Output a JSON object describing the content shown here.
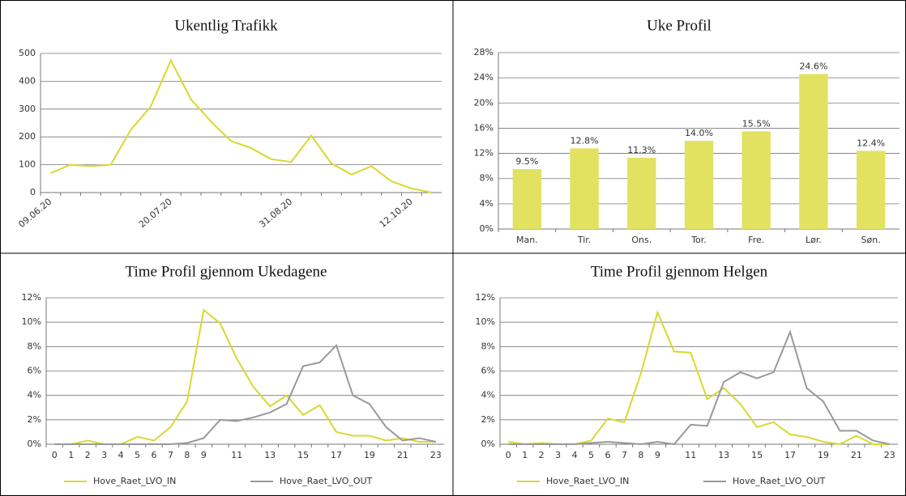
{
  "chart_data": [
    {
      "type": "line",
      "title": "Ukentlig Trafikk",
      "categories": [
        "09.06.20",
        null,
        null,
        null,
        null,
        null,
        "20.07.20",
        null,
        null,
        null,
        null,
        null,
        "31.08.20",
        null,
        null,
        null,
        null,
        null,
        "12.10.20",
        null
      ],
      "series": [
        {
          "name": null,
          "color": "#d8d830",
          "values": [
            70,
            100,
            95,
            100,
            225,
            310,
            475,
            335,
            255,
            185,
            160,
            120,
            110,
            205,
            105,
            65,
            95,
            40,
            15,
            0
          ]
        }
      ],
      "ylim": [
        0,
        500
      ],
      "yticks": [
        0,
        100,
        200,
        300,
        400,
        500
      ],
      "grid": true
    },
    {
      "type": "bar",
      "title": "Uke Profil",
      "categories": [
        "Man.",
        "Tir.",
        "Ons.",
        "Tor.",
        "Fre.",
        "Lør.",
        "Søn."
      ],
      "values": [
        9.5,
        12.8,
        11.3,
        14.0,
        15.5,
        24.6,
        12.4
      ],
      "value_labels": [
        "9.5%",
        "12.8%",
        "11.3%",
        "14.0%",
        "15.5%",
        "24.6%",
        "12.4%"
      ],
      "color": "#e2e260",
      "ylim": [
        0,
        28
      ],
      "yticks": [
        {
          "value": 0,
          "label": "0%"
        },
        {
          "value": 4,
          "label": "4%"
        },
        {
          "value": 8,
          "label": "8%"
        },
        {
          "value": 12,
          "label": "12%"
        },
        {
          "value": 16,
          "label": "16%"
        },
        {
          "value": 20,
          "label": "20%"
        },
        {
          "value": 24,
          "label": "24%"
        },
        {
          "value": 28,
          "label": "28%"
        }
      ],
      "grid": true
    },
    {
      "type": "line",
      "title": "Time Profil gjennom Ukedagene",
      "categories": [
        "0",
        "1",
        "2",
        "3",
        "4",
        "5",
        "6",
        "7",
        "8",
        "9",
        null,
        "11",
        null,
        "13",
        null,
        "15",
        null,
        "17",
        null,
        "19",
        null,
        "21",
        null,
        "23"
      ],
      "series": [
        {
          "name": "Hove_Raet_LVO_IN",
          "color": "#d8d830",
          "values": [
            0,
            0,
            0.3,
            0,
            0,
            0.6,
            0.3,
            1.4,
            3.5,
            11,
            9.9,
            7,
            4.7,
            3.1,
            4,
            2.4,
            3.2,
            1,
            0.7,
            0.7,
            0.3,
            0.5,
            0.2,
            0.2
          ]
        },
        {
          "name": "Hove_Raet_LVO_OUT",
          "color": "#999999",
          "values": [
            0,
            0,
            0,
            0,
            0,
            0,
            0,
            0,
            0.1,
            0.5,
            2,
            1.9,
            2.2,
            2.6,
            3.3,
            6.4,
            6.7,
            8.1,
            4,
            3.3,
            1.4,
            0.3,
            0.5,
            0.2
          ]
        }
      ],
      "ylim": [
        0,
        12
      ],
      "yticks": [
        {
          "value": 0,
          "label": "0%"
        },
        {
          "value": 2,
          "label": "2%"
        },
        {
          "value": 4,
          "label": "4%"
        },
        {
          "value": 6,
          "label": "6%"
        },
        {
          "value": 8,
          "label": "8%"
        },
        {
          "value": 10,
          "label": "10%"
        },
        {
          "value": 12,
          "label": "12%"
        }
      ],
      "grid": true,
      "legend": "bottom"
    },
    {
      "type": "line",
      "title": "Time Profil gjennom Helgen",
      "categories": [
        "0",
        "1",
        "2",
        "3",
        "4",
        "5",
        "6",
        "7",
        "8",
        "9",
        null,
        "11",
        null,
        "13",
        null,
        "15",
        null,
        "17",
        null,
        "19",
        null,
        "21",
        null,
        "23"
      ],
      "series": [
        {
          "name": "Hove_Raet_LVO_IN",
          "color": "#d8d830",
          "values": [
            0.2,
            0,
            0.1,
            0,
            0,
            0.3,
            2.1,
            1.8,
            5.8,
            10.8,
            7.6,
            7.5,
            3.7,
            4.6,
            3.3,
            1.4,
            1.8,
            0.8,
            0.6,
            0.2,
            0,
            0.7,
            0,
            0
          ]
        },
        {
          "name": "Hove_Raet_LVO_OUT",
          "color": "#999999",
          "values": [
            0,
            0,
            0,
            0,
            0,
            0.1,
            0.2,
            0.1,
            0,
            0.2,
            0,
            1.6,
            1.5,
            5.1,
            5.9,
            5.4,
            5.9,
            9.2,
            4.6,
            3.5,
            1.1,
            1.1,
            0.3,
            0
          ]
        }
      ],
      "ylim": [
        0,
        12
      ],
      "yticks": [
        {
          "value": 0,
          "label": "0%"
        },
        {
          "value": 2,
          "label": "2%"
        },
        {
          "value": 4,
          "label": "4%"
        },
        {
          "value": 6,
          "label": "6%"
        },
        {
          "value": 8,
          "label": "8%"
        },
        {
          "value": 10,
          "label": "10%"
        },
        {
          "value": 12,
          "label": "12%"
        }
      ],
      "grid": true,
      "legend": "bottom"
    }
  ]
}
